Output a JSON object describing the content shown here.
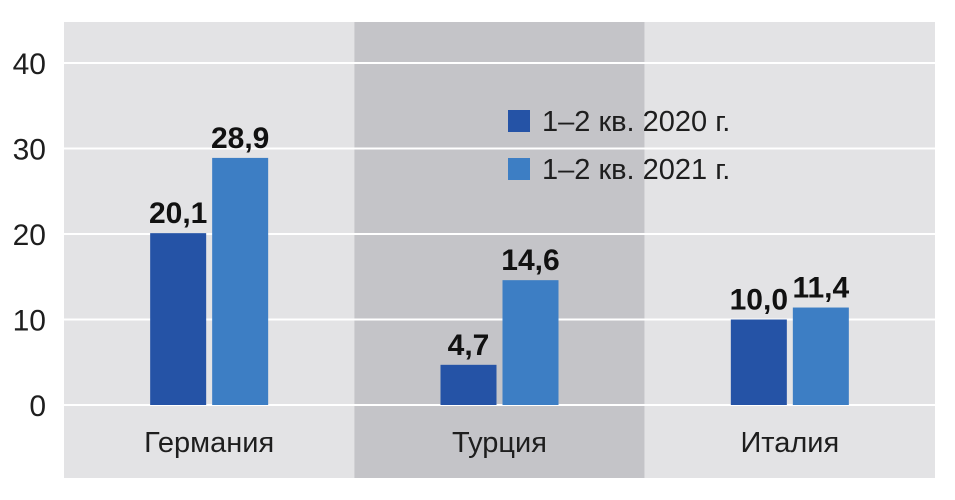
{
  "chart_data": {
    "type": "bar",
    "categories": [
      "Германия",
      "Турция",
      "Италия"
    ],
    "series": [
      {
        "name": "1–2 кв. 2020 г.",
        "values": [
          20.1,
          4.7,
          10.0
        ],
        "labels": [
          "20,1",
          "4,7",
          "10,0"
        ],
        "color": "#2553a6"
      },
      {
        "name": "1–2 кв. 2021 г.",
        "values": [
          28.9,
          14.6,
          11.4
        ],
        "labels": [
          "28,9",
          "14,6",
          "11,4"
        ],
        "color": "#3d7ec4"
      }
    ],
    "ylim": [
      0,
      40
    ],
    "yticks": [
      0,
      10,
      20,
      30,
      40
    ],
    "ytick_labels": [
      "0",
      "10",
      "20",
      "30",
      "40"
    ],
    "grid": true,
    "legend": "top-center",
    "colors": {
      "panel_light": "#e3e3e5",
      "panel_dark": "#c4c4c8",
      "gridline": "#ffffff"
    }
  }
}
